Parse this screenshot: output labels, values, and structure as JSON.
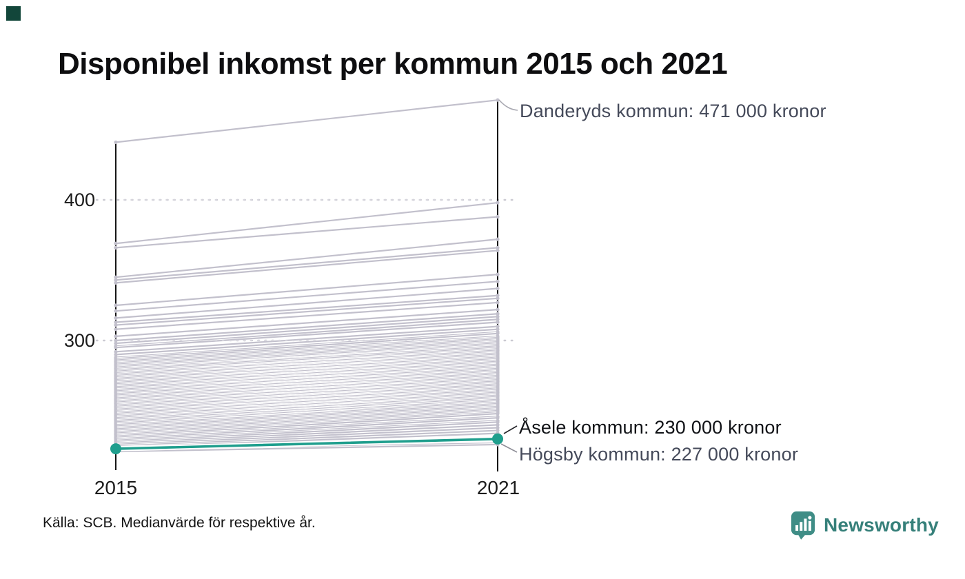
{
  "title": "Disponibel inkomst per kommun 2015 och 2021",
  "source": "Källa: SCB. Medianvärde för respektive år.",
  "branding": {
    "name": "Newsworthy",
    "logo_color": "#3f8d86",
    "wordmark_color": "#36807a",
    "corner_square_color": "#12463a"
  },
  "colors": {
    "highlight": "#1f9e8d",
    "background_line": "#c2c0cc",
    "axis": "#151515",
    "grid": "#cbcad2",
    "grid_overlay": "#d8d7de",
    "leader_dark": "#26262b",
    "leader_gray": "#8e8e97",
    "leader_light": "#a7a7b0",
    "annotation_text": "#454a5a",
    "annotation_text_dark": "#101216"
  },
  "chart_data": {
    "type": "slope",
    "title": "Disponibel inkomst per kommun 2015 och 2021",
    "x_categories": [
      "2015",
      "2021"
    ],
    "y_ticks": [
      "300",
      "400"
    ],
    "ylim_approx": [
      205,
      480
    ],
    "grid": "dotted-horizontal",
    "legend": "none",
    "named_series": [
      {
        "name": "Danderyds kommun",
        "values": [
          441,
          471
        ],
        "highlighted": false
      },
      {
        "name": "Åsele kommun",
        "values": [
          223,
          230
        ],
        "highlighted": true
      },
      {
        "name": "Högsby kommun",
        "values": [
          222,
          227
        ],
        "highlighted": false
      }
    ],
    "annotations": [
      {
        "label": "Danderyds kommun: 471 000 kronor",
        "series": "Danderyds kommun",
        "value_2021": 471
      },
      {
        "label": "Åsele kommun: 230 000 kronor",
        "series": "Åsele kommun",
        "value_2021": 230
      },
      {
        "label": "Högsby kommun: 227 000 kronor",
        "series": "Högsby kommun",
        "value_2021": 227
      }
    ],
    "background_series": [
      [
        369,
        398
      ],
      [
        366,
        388
      ],
      [
        345,
        372
      ],
      [
        343,
        366
      ],
      [
        341,
        364
      ],
      [
        325,
        347
      ],
      [
        321,
        342
      ],
      [
        316,
        337
      ],
      [
        313,
        332
      ],
      [
        311,
        330
      ],
      [
        308,
        327
      ],
      [
        303,
        322
      ],
      [
        300,
        319
      ],
      [
        298,
        317
      ],
      [
        296,
        315
      ],
      [
        295,
        313
      ],
      [
        292,
        310
      ],
      [
        290,
        308
      ],
      [
        288,
        306
      ],
      [
        287,
        305
      ],
      [
        286,
        303
      ],
      [
        285,
        302
      ],
      [
        284,
        301
      ],
      [
        283,
        300
      ],
      [
        282,
        299
      ],
      [
        281,
        298
      ],
      [
        280,
        297
      ],
      [
        280,
        296
      ],
      [
        279,
        296
      ],
      [
        278,
        295
      ],
      [
        277,
        294
      ],
      [
        277,
        293
      ],
      [
        276,
        293
      ],
      [
        275,
        292
      ],
      [
        275,
        291
      ],
      [
        274,
        291
      ],
      [
        273,
        290
      ],
      [
        273,
        289
      ],
      [
        272,
        289
      ],
      [
        271,
        288
      ],
      [
        271,
        287
      ],
      [
        270,
        287
      ],
      [
        269,
        286
      ],
      [
        269,
        285
      ],
      [
        268,
        285
      ],
      [
        267,
        284
      ],
      [
        267,
        283
      ],
      [
        266,
        283
      ],
      [
        265,
        282
      ],
      [
        265,
        281
      ],
      [
        264,
        281
      ],
      [
        263,
        280
      ],
      [
        263,
        279
      ],
      [
        262,
        279
      ],
      [
        261,
        278
      ],
      [
        261,
        277
      ],
      [
        260,
        277
      ],
      [
        259,
        276
      ],
      [
        259,
        275
      ],
      [
        258,
        275
      ],
      [
        257,
        274
      ],
      [
        257,
        273
      ],
      [
        256,
        273
      ],
      [
        255,
        272
      ],
      [
        255,
        271
      ],
      [
        254,
        271
      ],
      [
        253,
        270
      ],
      [
        253,
        269
      ],
      [
        252,
        269
      ],
      [
        251,
        268
      ],
      [
        251,
        267
      ],
      [
        250,
        267
      ],
      [
        249,
        266
      ],
      [
        249,
        265
      ],
      [
        248,
        265
      ],
      [
        247,
        264
      ],
      [
        247,
        263
      ],
      [
        246,
        263
      ],
      [
        245,
        262
      ],
      [
        245,
        261
      ],
      [
        244,
        261
      ],
      [
        243,
        260
      ],
      [
        243,
        259
      ],
      [
        242,
        258
      ],
      [
        241,
        258
      ],
      [
        240,
        257
      ],
      [
        240,
        256
      ],
      [
        239,
        255
      ],
      [
        238,
        254
      ],
      [
        237,
        253
      ],
      [
        236,
        252
      ],
      [
        235,
        251
      ],
      [
        234,
        250
      ],
      [
        233,
        249
      ],
      [
        232,
        248
      ],
      [
        231,
        246
      ],
      [
        230,
        245
      ],
      [
        229,
        243
      ],
      [
        228,
        242
      ],
      [
        227,
        240
      ],
      [
        226,
        238
      ],
      [
        225,
        236
      ],
      [
        224,
        234
      ],
      [
        221,
        226
      ]
    ]
  }
}
